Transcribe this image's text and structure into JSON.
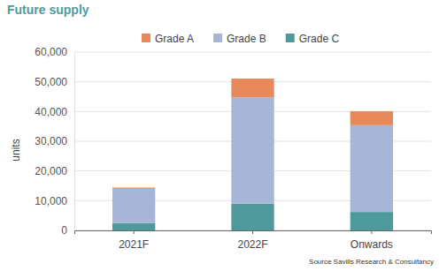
{
  "chart_data": {
    "type": "bar",
    "title": "Future supply",
    "y_label": "units",
    "source": "Source Savills Research & Consultancy",
    "categories": [
      "2021F",
      "2022F",
      "Onwards"
    ],
    "series": [
      {
        "name": "Grade C",
        "color": "#4e9a9b",
        "values": [
          2500,
          9000,
          6200
        ]
      },
      {
        "name": "Grade B",
        "color": "#a7b6d6",
        "values": [
          11500,
          35800,
          29200
        ]
      },
      {
        "name": "Grade A",
        "color": "#e8895b",
        "values": [
          400,
          6300,
          4700
        ]
      }
    ],
    "stacked": true,
    "ylim": [
      0,
      60000
    ],
    "yticks": [
      0,
      {
        "value": 10000,
        "label": "10,000"
      },
      {
        "value": 20000,
        "label": "20,000"
      },
      {
        "value": 30000,
        "label": "30,000"
      },
      {
        "value": 40000,
        "label": "40,000"
      },
      {
        "value": 50000,
        "label": "50,000"
      },
      {
        "value": 60000,
        "label": "60,000"
      }
    ],
    "grid": true,
    "legend": "top"
  }
}
